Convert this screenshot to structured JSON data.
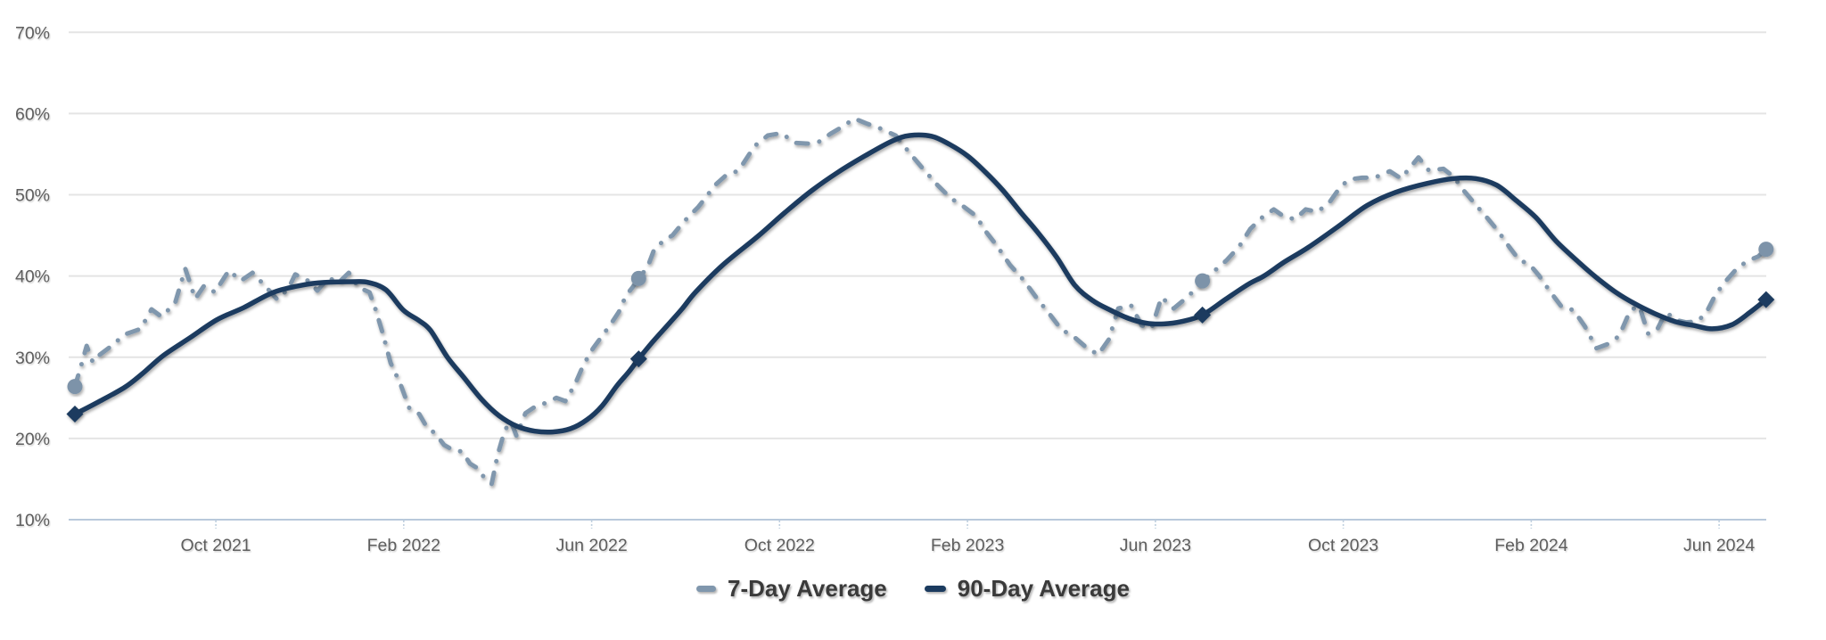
{
  "page": {
    "background": "#ffffff"
  },
  "chart_data": {
    "type": "line",
    "title": "",
    "xlabel": "",
    "ylabel": "",
    "grid": true,
    "legend_position": "bottom-center",
    "x_axis": {
      "note": "x values are months since 2021-07; range shown Jul 2021 to Jul 2024",
      "range_months": [
        0,
        36
      ],
      "ticks": [
        {
          "label": "Oct 2021",
          "m": 3
        },
        {
          "label": "Feb 2022",
          "m": 7
        },
        {
          "label": "Jun 2022",
          "m": 11
        },
        {
          "label": "Oct 2022",
          "m": 15
        },
        {
          "label": "Feb 2023",
          "m": 19
        },
        {
          "label": "Jun 2023",
          "m": 23
        },
        {
          "label": "Oct 2023",
          "m": 27
        },
        {
          "label": "Feb 2024",
          "m": 31
        },
        {
          "label": "Jun 2024",
          "m": 35
        }
      ]
    },
    "y_axis": {
      "unit": "%",
      "range": [
        10,
        70
      ],
      "ticks": [
        {
          "label": "10%",
          "v": 10
        },
        {
          "label": "20%",
          "v": 20
        },
        {
          "label": "30%",
          "v": 30
        },
        {
          "label": "40%",
          "v": 40
        },
        {
          "label": "50%",
          "v": 50
        },
        {
          "label": "60%",
          "v": 60
        },
        {
          "label": "70%",
          "v": 70
        }
      ]
    },
    "colors": {
      "grid": "#e4e4e4",
      "axis_line": "#b9c9db",
      "tick_mark": "#bfcfdf",
      "axis_text": "#5e5e5e",
      "legend_text": "#3a3a3a"
    },
    "series": [
      {
        "name": "7-Day Average",
        "style": "dashed",
        "smooth": false,
        "color": "#8097ad",
        "marker": "circle",
        "marker_color": "#7d93a9",
        "markers": [
          [
            0,
            26.4
          ],
          [
            12,
            39.7
          ],
          [
            24,
            39.4
          ],
          [
            36,
            43.3
          ]
        ],
        "points": [
          [
            0,
            26.4
          ],
          [
            0.11,
            28.5
          ],
          [
            0.25,
            31.4
          ],
          [
            0.38,
            29.4
          ],
          [
            0.53,
            30.3
          ],
          [
            0.78,
            31.4
          ],
          [
            1.06,
            32.8
          ],
          [
            1.4,
            33.5
          ],
          [
            1.63,
            35.9
          ],
          [
            1.84,
            35
          ],
          [
            2.13,
            36.6
          ],
          [
            2.35,
            40.9
          ],
          [
            2.56,
            37.2
          ],
          [
            2.75,
            38.8
          ],
          [
            2.98,
            38
          ],
          [
            3.28,
            40.7
          ],
          [
            3.53,
            39.4
          ],
          [
            3.78,
            40.4
          ],
          [
            4.03,
            38.9
          ],
          [
            4.31,
            37.1
          ],
          [
            4.54,
            38.4
          ],
          [
            4.69,
            40.2
          ],
          [
            4.97,
            39.4
          ],
          [
            5.16,
            38.2
          ],
          [
            5.41,
            39.8
          ],
          [
            5.6,
            39.1
          ],
          [
            5.83,
            40.4
          ],
          [
            6.04,
            38.6
          ],
          [
            6.27,
            38
          ],
          [
            6.4,
            35.9
          ],
          [
            6.55,
            33
          ],
          [
            6.72,
            29.3
          ],
          [
            6.93,
            26.7
          ],
          [
            7.12,
            23.7
          ],
          [
            7.33,
            23
          ],
          [
            7.48,
            21.5
          ],
          [
            7.67,
            20.6
          ],
          [
            7.86,
            19.2
          ],
          [
            8.07,
            18.5
          ],
          [
            8.24,
            18.4
          ],
          [
            8.41,
            16.9
          ],
          [
            8.58,
            16.3
          ],
          [
            8.71,
            15.2
          ],
          [
            8.87,
            14.4
          ],
          [
            9,
            18
          ],
          [
            9.15,
            21
          ],
          [
            9.28,
            22.1
          ],
          [
            9.4,
            20.3
          ],
          [
            9.59,
            23.1
          ],
          [
            9.82,
            24
          ],
          [
            10.04,
            24.4
          ],
          [
            10.25,
            25
          ],
          [
            10.44,
            24.6
          ],
          [
            10.65,
            26.7
          ],
          [
            10.82,
            29
          ],
          [
            11.03,
            31.1
          ],
          [
            11.22,
            32.6
          ],
          [
            11.41,
            34.1
          ],
          [
            11.58,
            35.6
          ],
          [
            11.73,
            37.6
          ],
          [
            11.87,
            38.6
          ],
          [
            12,
            39.7
          ],
          [
            12.19,
            41.1
          ],
          [
            12.34,
            43.4
          ],
          [
            12.57,
            44.5
          ],
          [
            12.72,
            45
          ],
          [
            12.95,
            46.6
          ],
          [
            13.1,
            47.5
          ],
          [
            13.27,
            48.5
          ],
          [
            13.42,
            49.6
          ],
          [
            13.61,
            51.1
          ],
          [
            13.84,
            52.3
          ],
          [
            14.13,
            53
          ],
          [
            14.47,
            56
          ],
          [
            14.75,
            57.3
          ],
          [
            15.04,
            57.6
          ],
          [
            15.32,
            56.4
          ],
          [
            15.61,
            56.3
          ],
          [
            15.83,
            56.5
          ],
          [
            16.08,
            57.5
          ],
          [
            16.37,
            58.5
          ],
          [
            16.59,
            59.4
          ],
          [
            16.84,
            58.8
          ],
          [
            17.13,
            58.2
          ],
          [
            17.47,
            57.3
          ],
          [
            17.79,
            55
          ],
          [
            18.07,
            53.1
          ],
          [
            18.36,
            51.2
          ],
          [
            18.64,
            49.6
          ],
          [
            18.93,
            48.5
          ],
          [
            19.18,
            47.4
          ],
          [
            19.4,
            45.4
          ],
          [
            19.63,
            43.7
          ],
          [
            19.9,
            41.4
          ],
          [
            20.18,
            39.6
          ],
          [
            20.47,
            37.3
          ],
          [
            20.75,
            35.3
          ],
          [
            21,
            33.4
          ],
          [
            21.25,
            32.6
          ],
          [
            21.49,
            31.4
          ],
          [
            21.78,
            30.3
          ],
          [
            22.01,
            32.2
          ],
          [
            22.21,
            36
          ],
          [
            22.48,
            36.4
          ],
          [
            22.71,
            33.9
          ],
          [
            22.92,
            33.6
          ],
          [
            23.13,
            37.4
          ],
          [
            23.39,
            36
          ],
          [
            23.68,
            37.4
          ],
          [
            23.89,
            38.6
          ],
          [
            24,
            39.4
          ],
          [
            24.25,
            40.6
          ],
          [
            24.51,
            41.9
          ],
          [
            24.78,
            43.6
          ],
          [
            25.02,
            45.8
          ],
          [
            25.29,
            47.3
          ],
          [
            25.52,
            48.2
          ],
          [
            25.74,
            47.3
          ],
          [
            25.97,
            47
          ],
          [
            26.2,
            48.2
          ],
          [
            26.45,
            47.9
          ],
          [
            26.71,
            49.1
          ],
          [
            26.94,
            51
          ],
          [
            27.13,
            51.9
          ],
          [
            27.4,
            52.1
          ],
          [
            27.66,
            52.1
          ],
          [
            27.99,
            52.9
          ],
          [
            28.23,
            52
          ],
          [
            28.6,
            54.6
          ],
          [
            28.82,
            53
          ],
          [
            29.13,
            53.2
          ],
          [
            29.35,
            52.2
          ],
          [
            29.58,
            50.4
          ],
          [
            29.83,
            48.7
          ],
          [
            30.07,
            47.1
          ],
          [
            30.3,
            45.5
          ],
          [
            30.53,
            43.6
          ],
          [
            30.74,
            42
          ],
          [
            30.97,
            41.4
          ],
          [
            31.16,
            40.1
          ],
          [
            31.4,
            38.1
          ],
          [
            31.65,
            36.2
          ],
          [
            31.9,
            35.8
          ],
          [
            32.14,
            33.8
          ],
          [
            32.39,
            31.1
          ],
          [
            32.62,
            31.6
          ],
          [
            32.87,
            32.6
          ],
          [
            33.11,
            35.8
          ],
          [
            33.3,
            36.3
          ],
          [
            33.49,
            32.9
          ],
          [
            33.68,
            33.4
          ],
          [
            33.87,
            35.6
          ],
          [
            34.06,
            34.6
          ],
          [
            34.29,
            34.3
          ],
          [
            34.52,
            34.4
          ],
          [
            34.71,
            35.3
          ],
          [
            34.93,
            37.8
          ],
          [
            35.16,
            39.5
          ],
          [
            35.39,
            41
          ],
          [
            35.62,
            41.9
          ],
          [
            35.83,
            42.4
          ],
          [
            36,
            43.3
          ]
        ]
      },
      {
        "name": "90-Day Average",
        "style": "solid",
        "smooth": true,
        "color": "#1b3b5f",
        "marker": "diamond",
        "marker_color": "#1b3b5f",
        "markers": [
          [
            0,
            23
          ],
          [
            12,
            29.8
          ],
          [
            24,
            35.2
          ],
          [
            36,
            37.1
          ]
        ],
        "points": [
          [
            0,
            23
          ],
          [
            0.5,
            24.5
          ],
          [
            1.06,
            26.3
          ],
          [
            1.44,
            28
          ],
          [
            1.88,
            30.2
          ],
          [
            2.45,
            32.4
          ],
          [
            3.02,
            34.6
          ],
          [
            3.59,
            36.1
          ],
          [
            4.23,
            38
          ],
          [
            4.86,
            38.9
          ],
          [
            5.3,
            39.2
          ],
          [
            5.94,
            39.3
          ],
          [
            6.25,
            39.2
          ],
          [
            6.62,
            38.3
          ],
          [
            6.99,
            35.8
          ],
          [
            7.33,
            34.5
          ],
          [
            7.57,
            33.3
          ],
          [
            7.93,
            30
          ],
          [
            8.28,
            27.5
          ],
          [
            8.66,
            24.8
          ],
          [
            9.03,
            22.8
          ],
          [
            9.41,
            21.5
          ],
          [
            9.79,
            20.9
          ],
          [
            10.17,
            20.8
          ],
          [
            10.55,
            21.2
          ],
          [
            10.9,
            22.3
          ],
          [
            11.22,
            24
          ],
          [
            11.54,
            26.5
          ],
          [
            11.79,
            28.2
          ],
          [
            12,
            29.8
          ],
          [
            12.3,
            31.9
          ],
          [
            12.64,
            34.1
          ],
          [
            12.93,
            36
          ],
          [
            13.21,
            38
          ],
          [
            13.78,
            41.3
          ],
          [
            14.54,
            44.9
          ],
          [
            15.11,
            47.8
          ],
          [
            15.68,
            50.5
          ],
          [
            16.25,
            52.8
          ],
          [
            16.82,
            54.8
          ],
          [
            17.39,
            56.6
          ],
          [
            17.77,
            57.3
          ],
          [
            18.24,
            57.2
          ],
          [
            18.62,
            56.2
          ],
          [
            19,
            54.8
          ],
          [
            19.38,
            52.8
          ],
          [
            19.76,
            50.5
          ],
          [
            20.14,
            47.8
          ],
          [
            20.52,
            45.2
          ],
          [
            20.9,
            42.3
          ],
          [
            21.28,
            38.9
          ],
          [
            21.66,
            37
          ],
          [
            22.04,
            35.8
          ],
          [
            22.42,
            34.8
          ],
          [
            22.8,
            34.2
          ],
          [
            23.18,
            34.1
          ],
          [
            23.56,
            34.4
          ],
          [
            24,
            35.2
          ],
          [
            24.51,
            37.2
          ],
          [
            24.98,
            39
          ],
          [
            25.31,
            40
          ],
          [
            25.74,
            41.7
          ],
          [
            26.25,
            43.5
          ],
          [
            26.89,
            46.1
          ],
          [
            27.51,
            48.7
          ],
          [
            28.11,
            50.3
          ],
          [
            28.78,
            51.4
          ],
          [
            29.35,
            52
          ],
          [
            29.82,
            52
          ],
          [
            30.26,
            51.2
          ],
          [
            30.68,
            49.3
          ],
          [
            31.1,
            47.2
          ],
          [
            31.53,
            44.3
          ],
          [
            32.01,
            41.7
          ],
          [
            32.39,
            39.8
          ],
          [
            32.8,
            38
          ],
          [
            33.2,
            36.6
          ],
          [
            33.62,
            35.4
          ],
          [
            34.06,
            34.4
          ],
          [
            34.47,
            33.9
          ],
          [
            34.85,
            33.5
          ],
          [
            35.27,
            34
          ],
          [
            35.65,
            35.5
          ],
          [
            36,
            37.1
          ]
        ]
      }
    ]
  }
}
